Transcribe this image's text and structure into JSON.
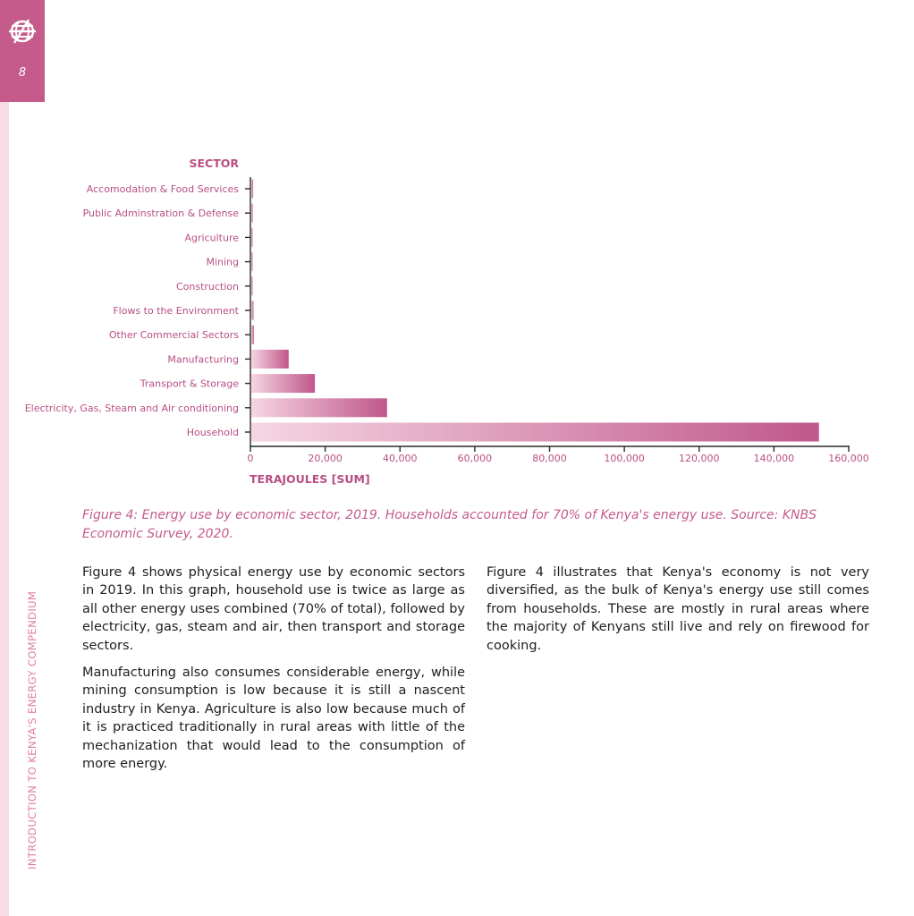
{
  "page": {
    "number": "8",
    "side_label": "INTRODUCTION TO KENYA'S ENERGY COMPENDIUM"
  },
  "colors": {
    "accent": "#c45b8b",
    "strip": "#f9dbe6",
    "label_pink": "#b84f83"
  },
  "chart_data": {
    "type": "bar",
    "orientation": "horizontal",
    "ylabel": "SECTOR",
    "xlabel": "TERAJOULES [SUM]",
    "categories": [
      "Accomodation & Food Services",
      "Public Adminstration & Defense",
      "Agriculture",
      "Mining",
      "Construction",
      "Flows to the Environment",
      "Other Commercial Sectors",
      "Manufacturing",
      "Transport & Storage",
      "Electricity, Gas, Steam and Air conditioning",
      "Household"
    ],
    "values": [
      500,
      400,
      300,
      250,
      150,
      600,
      700,
      10000,
      17000,
      36300,
      151800
    ],
    "xlim": [
      0,
      160000
    ],
    "x_ticks": [
      "0",
      "20,000",
      "40,000",
      "60,000",
      "80,000",
      "100,000",
      "120,000",
      "140,000",
      "160,000"
    ],
    "grid": false,
    "legend": "none"
  },
  "caption": "Figure 4: Energy use by economic sector, 2019.  Households accounted for 70% of Kenya's energy use. Source: KNBS Economic Survey, 2020.",
  "body": {
    "left": [
      "Figure 4 shows physical energy use by economic sectors in 2019.  In this graph, household use is twice as large as all other energy uses combined (70% of total), followed by electricity, gas, steam and air, then transport and storage sectors.",
      "Manufacturing also consumes considerable energy, while mining consumption is low because it is still a nascent industry in Kenya. Agriculture is also low because much of it is practiced traditionally in rural areas with little of the mechanization that would lead to the consumption of more energy."
    ],
    "right": [
      "Figure 4 illustrates that Kenya's economy is not very diversified, as the bulk of Kenya's energy use still comes from households. These are mostly in rural areas where the majority of Kenyans still live and rely on firewood for cooking."
    ]
  }
}
